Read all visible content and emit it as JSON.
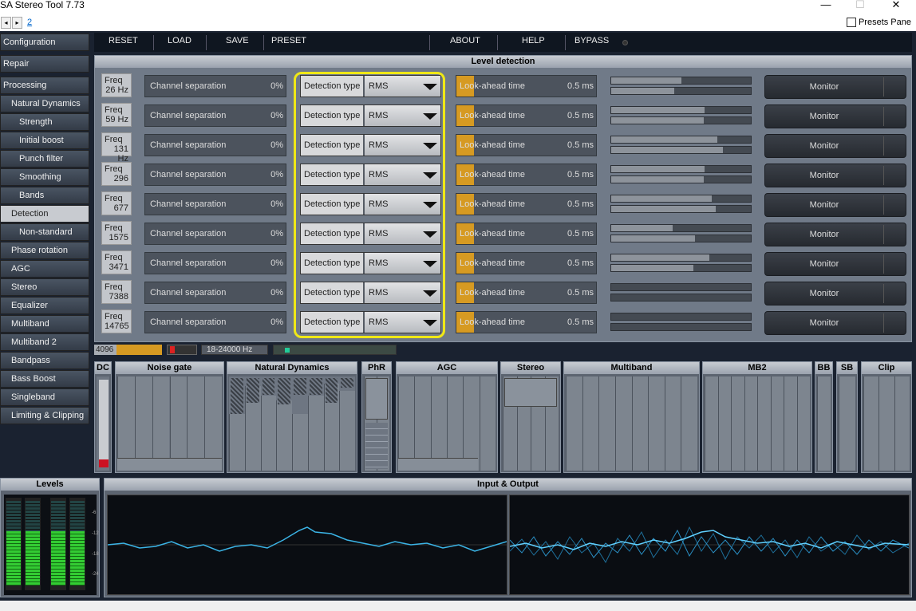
{
  "window": {
    "title": "SA Stereo Tool 7.73",
    "minimize": "—",
    "maximize": "☐",
    "close": "✕"
  },
  "subbar": {
    "back": "◂",
    "forward": "▸",
    "page_link": "2",
    "presets_pane_label": "Presets Pane"
  },
  "sidebar": {
    "items": [
      {
        "label": "Configuration",
        "level": 0
      },
      {
        "label": "Repair",
        "level": 0
      },
      {
        "label": "Processing",
        "level": 0
      },
      {
        "label": "Natural Dynamics",
        "level": 1
      },
      {
        "label": "Strength",
        "level": 2
      },
      {
        "label": "Initial boost",
        "level": 2
      },
      {
        "label": "Punch filter",
        "level": 2
      },
      {
        "label": "Smoothing",
        "level": 2
      },
      {
        "label": "Bands",
        "level": 2
      },
      {
        "label": "Detection",
        "level": 1,
        "active": true
      },
      {
        "label": "Non-standard",
        "level": 2
      },
      {
        "label": "Phase rotation",
        "level": 1
      },
      {
        "label": "AGC",
        "level": 1
      },
      {
        "label": "Stereo",
        "level": 1
      },
      {
        "label": "Equalizer",
        "level": 1
      },
      {
        "label": "Multiband",
        "level": 1
      },
      {
        "label": "Multiband 2",
        "level": 1
      },
      {
        "label": "Bandpass",
        "level": 1
      },
      {
        "label": "Bass Boost",
        "level": 1
      },
      {
        "label": "Singleband",
        "level": 1
      },
      {
        "label": "Limiting & Clipping",
        "level": 1
      }
    ]
  },
  "menubar": {
    "reset": "RESET",
    "load": "LOAD",
    "save": "SAVE",
    "preset": "PRESET",
    "about": "ABOUT",
    "help": "HELP",
    "bypass": "BYPASS"
  },
  "panel": {
    "title": "Level detection"
  },
  "rows": [
    {
      "freq_label": "Freq",
      "freq": "26 Hz",
      "sep_label": "Channel separation",
      "sep_val": "0%",
      "det_label": "Detection type",
      "det_val": "RMS",
      "look_label": "Look-ahead time",
      "look_val": "0.5 ms",
      "monitor": "Monitor",
      "m1": 0.5,
      "m2": 0.45
    },
    {
      "freq_label": "Freq",
      "freq": "59 Hz",
      "sep_label": "Channel separation",
      "sep_val": "0%",
      "det_label": "Detection type",
      "det_val": "RMS",
      "look_label": "Look-ahead time",
      "look_val": "0.5 ms",
      "monitor": "Monitor",
      "m1": 0.67,
      "m2": 0.66
    },
    {
      "freq_label": "Freq",
      "freq": "131 Hz",
      "sep_label": "Channel separation",
      "sep_val": "0%",
      "det_label": "Detection type",
      "det_val": "RMS",
      "look_label": "Look-ahead time",
      "look_val": "0.5 ms",
      "monitor": "Monitor",
      "m1": 0.76,
      "m2": 0.8
    },
    {
      "freq_label": "Freq",
      "freq": "296",
      "sep_label": "Channel separation",
      "sep_val": "0%",
      "det_label": "Detection type",
      "det_val": "RMS",
      "look_label": "Look-ahead time",
      "look_val": "0.5 ms",
      "monitor": "Monitor",
      "m1": 0.67,
      "m2": 0.66
    },
    {
      "freq_label": "Freq",
      "freq": "677",
      "sep_label": "Channel separation",
      "sep_val": "0%",
      "det_label": "Detection type",
      "det_val": "RMS",
      "look_label": "Look-ahead time",
      "look_val": "0.5 ms",
      "monitor": "Monitor",
      "m1": 0.72,
      "m2": 0.75
    },
    {
      "freq_label": "Freq",
      "freq": "1575",
      "sep_label": "Channel separation",
      "sep_val": "0%",
      "det_label": "Detection type",
      "det_val": "RMS",
      "look_label": "Look-ahead time",
      "look_val": "0.5 ms",
      "monitor": "Monitor",
      "m1": 0.44,
      "m2": 0.6
    },
    {
      "freq_label": "Freq",
      "freq": "3471",
      "sep_label": "Channel separation",
      "sep_val": "0%",
      "det_label": "Detection type",
      "det_val": "RMS",
      "look_label": "Look-ahead time",
      "look_val": "0.5 ms",
      "monitor": "Monitor",
      "m1": 0.7,
      "m2": 0.59
    },
    {
      "freq_label": "Freq",
      "freq": "7388",
      "sep_label": "Channel separation",
      "sep_val": "0%",
      "det_label": "Detection type",
      "det_val": "RMS",
      "look_label": "Look-ahead time",
      "look_val": "0.5 ms",
      "monitor": "Monitor",
      "m1": 0.0,
      "m2": 0.0
    },
    {
      "freq_label": "Freq",
      "freq": "14765",
      "sep_label": "Channel separation",
      "sep_val": "0%",
      "det_label": "Detection type",
      "det_val": "RMS",
      "look_label": "Look-ahead time",
      "look_val": "0.5 ms",
      "monitor": "Monitor",
      "m1": 0.0,
      "m2": 0.0
    }
  ],
  "status": {
    "buffer": "4096",
    "bandwidth": "18-24000 Hz"
  },
  "modules": [
    {
      "name": "DC"
    },
    {
      "name": "Noise gate"
    },
    {
      "name": "Natural Dynamics"
    },
    {
      "name": "PhR"
    },
    {
      "name": "AGC"
    },
    {
      "name": "Stereo"
    },
    {
      "name": "Multiband"
    },
    {
      "name": "MB2"
    },
    {
      "name": "BB"
    },
    {
      "name": "SB"
    },
    {
      "name": "Clip"
    }
  ],
  "levels": {
    "title": "Levels",
    "scale": [
      "-6",
      "-12",
      "-18",
      "-24"
    ]
  },
  "io": {
    "title": "Input & Output"
  },
  "colors": {
    "accent": "#d69a22",
    "highlight": "#f0e816",
    "wave": "#3bb4e6"
  }
}
